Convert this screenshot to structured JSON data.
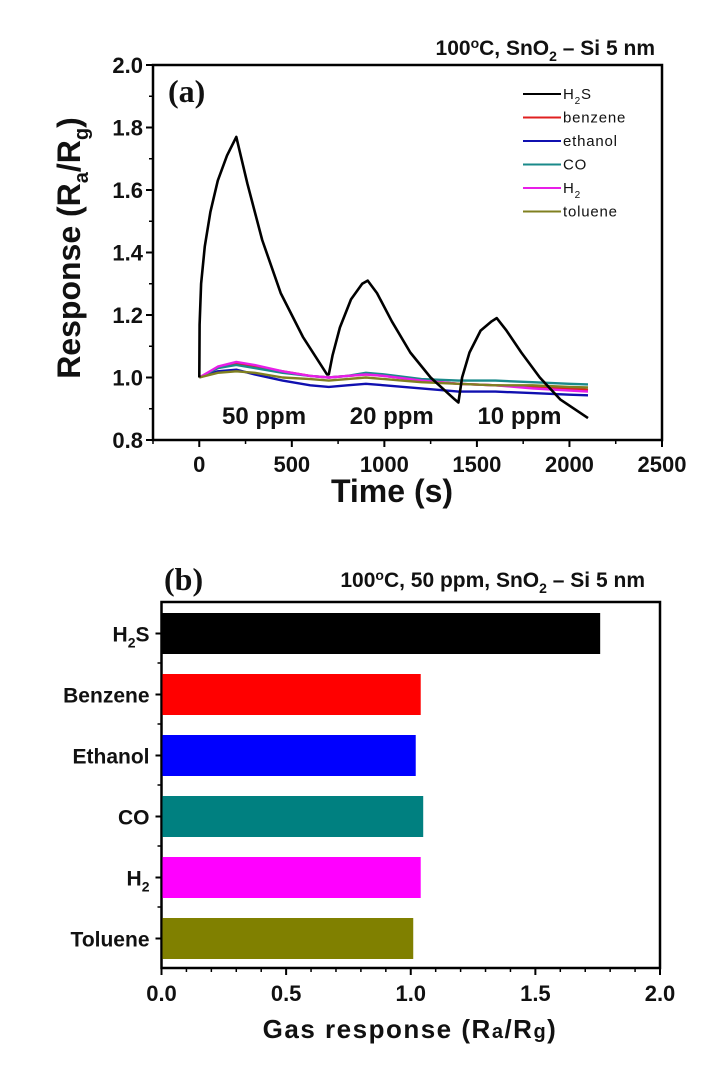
{
  "chart_data": [
    {
      "panel": "(a)",
      "type": "line",
      "title": "100°C, SnO2 – Si 5 nm",
      "title_parts": {
        "pre": "100",
        "sup": "o",
        "mid": "C, SnO",
        "sub": "2",
        "post": " – Si 5 nm"
      },
      "xlabel": "Time (s)",
      "ylabel": "Response (Ra/Rg)",
      "ylabel_parts": {
        "pre": "Response (R",
        "sub1": "a",
        "mid": "/R",
        "sub2": "g",
        "post": ")"
      },
      "xlim": [
        -250,
        2500
      ],
      "ylim": [
        0.8,
        2.0
      ],
      "xticks": [
        0,
        500,
        1000,
        1500,
        2000,
        2500
      ],
      "xtick_labels": [
        "0",
        "500",
        "1000",
        "1500",
        "2000",
        "2500"
      ],
      "yticks": [
        0.8,
        1.0,
        1.2,
        1.4,
        1.6,
        1.8,
        2.0
      ],
      "ytick_labels": [
        "0.8",
        "1.0",
        "1.2",
        "1.4",
        "1.6",
        "1.8",
        "2.0"
      ],
      "grid": false,
      "legend_position": "top-right",
      "annotations": [
        {
          "text": "50 ppm",
          "x": 350,
          "y": 0.88
        },
        {
          "text": "20 ppm",
          "x": 1040,
          "y": 0.88
        },
        {
          "text": "10 ppm",
          "x": 1730,
          "y": 0.88
        }
      ],
      "series": [
        {
          "name": "H2S",
          "label_main": "H",
          "label_sub": "2",
          "label_post": "S",
          "color": "#000000",
          "x": [
            0,
            2,
            10,
            30,
            60,
            100,
            150,
            200,
            260,
            340,
            440,
            560,
            690,
            700,
            720,
            760,
            820,
            880,
            910,
            960,
            1040,
            1140,
            1250,
            1380,
            1400,
            1420,
            1460,
            1520,
            1580,
            1607,
            1660,
            1740,
            1840,
            1950,
            2100
          ],
          "y": [
            1.0,
            1.17,
            1.3,
            1.42,
            1.53,
            1.63,
            1.71,
            1.77,
            1.62,
            1.44,
            1.27,
            1.13,
            1.01,
            1.01,
            1.07,
            1.16,
            1.25,
            1.3,
            1.31,
            1.27,
            1.18,
            1.08,
            1.0,
            0.93,
            0.92,
            1.0,
            1.08,
            1.15,
            1.18,
            1.19,
            1.15,
            1.08,
            1.0,
            0.93,
            0.87
          ]
        },
        {
          "name": "benzene",
          "label_main": "benzene",
          "color": "#e02020",
          "x": [
            0,
            100,
            200,
            300,
            450,
            600,
            700,
            800,
            900,
            1000,
            1200,
            1400,
            1600,
            1800,
            2000,
            2100
          ],
          "y": [
            1.0,
            1.03,
            1.045,
            1.035,
            1.02,
            1.005,
            1.0,
            1.005,
            1.01,
            1.005,
            0.99,
            0.98,
            0.975,
            0.97,
            0.965,
            0.96
          ]
        },
        {
          "name": "ethanol",
          "label_main": "ethanol",
          "color": "#1010b0",
          "x": [
            0,
            100,
            200,
            300,
            450,
            600,
            700,
            800,
            900,
            1000,
            1200,
            1400,
            1600,
            1800,
            2000,
            2100
          ],
          "y": [
            1.0,
            1.02,
            1.025,
            1.01,
            0.99,
            0.975,
            0.97,
            0.975,
            0.98,
            0.975,
            0.965,
            0.955,
            0.955,
            0.95,
            0.945,
            0.943
          ]
        },
        {
          "name": "CO",
          "label_main": "CO",
          "color": "#1a8a8a",
          "x": [
            0,
            100,
            200,
            300,
            450,
            600,
            700,
            800,
            900,
            1000,
            1200,
            1400,
            1600,
            1800,
            2000,
            2100
          ],
          "y": [
            1.0,
            1.03,
            1.04,
            1.03,
            1.015,
            1.005,
            1.0,
            1.005,
            1.015,
            1.01,
            0.995,
            0.99,
            0.99,
            0.985,
            0.98,
            0.978
          ]
        },
        {
          "name": "H2",
          "label_main": "H",
          "label_sub": "2",
          "color": "#e81ee8",
          "x": [
            0,
            100,
            200,
            300,
            450,
            600,
            700,
            800,
            900,
            1000,
            1200,
            1400,
            1600,
            1800,
            2000,
            2100
          ],
          "y": [
            1.0,
            1.035,
            1.05,
            1.04,
            1.02,
            1.005,
            1.0,
            1.005,
            1.01,
            1.005,
            0.99,
            0.98,
            0.975,
            0.965,
            0.958,
            0.955
          ]
        },
        {
          "name": "toluene",
          "label_main": "toluene",
          "color": "#808020",
          "x": [
            0,
            100,
            200,
            300,
            450,
            600,
            700,
            800,
            900,
            1000,
            1200,
            1400,
            1600,
            1800,
            2000,
            2100
          ],
          "y": [
            1.0,
            1.015,
            1.02,
            1.015,
            1.0,
            0.995,
            0.99,
            0.995,
            1.0,
            0.995,
            0.985,
            0.98,
            0.975,
            0.975,
            0.97,
            0.968
          ]
        }
      ]
    },
    {
      "panel": "(b)",
      "type": "bar",
      "orientation": "horizontal",
      "title": "100°C, 50 ppm, SnO2 – Si 5 nm",
      "title_parts": {
        "pre": "100",
        "sup": "o",
        "mid": "C, 50 ppm, SnO",
        "sub": "2",
        "post": " – Si 5 nm"
      },
      "xlabel": "Gas response (Ra/Rg)",
      "xlabel_parts": {
        "pre": "Gas response (R",
        "sub1": "a",
        "mid": "/R",
        "sub2": "g",
        "post": ")"
      },
      "ylabel": "",
      "xlim": [
        0,
        2.0
      ],
      "xticks": [
        0.0,
        0.5,
        1.0,
        1.5,
        2.0
      ],
      "xtick_labels": [
        "0.0",
        "0.5",
        "1.0",
        "1.5",
        "2.0"
      ],
      "grid": false,
      "categories": [
        "H2S",
        "Benzene",
        "Ethanol",
        "CO",
        "H2",
        "Toluene"
      ],
      "category_labels": [
        {
          "main": "H",
          "sub": "2",
          "post": "S"
        },
        {
          "main": "Benzene"
        },
        {
          "main": "Ethanol"
        },
        {
          "main": "CO"
        },
        {
          "main": "H",
          "sub": "2"
        },
        {
          "main": "Toluene"
        }
      ],
      "values": [
        1.76,
        1.04,
        1.02,
        1.05,
        1.04,
        1.01
      ],
      "colors": [
        "#000000",
        "#ff0000",
        "#0000ff",
        "#008080",
        "#ff00ff",
        "#808000"
      ]
    }
  ]
}
